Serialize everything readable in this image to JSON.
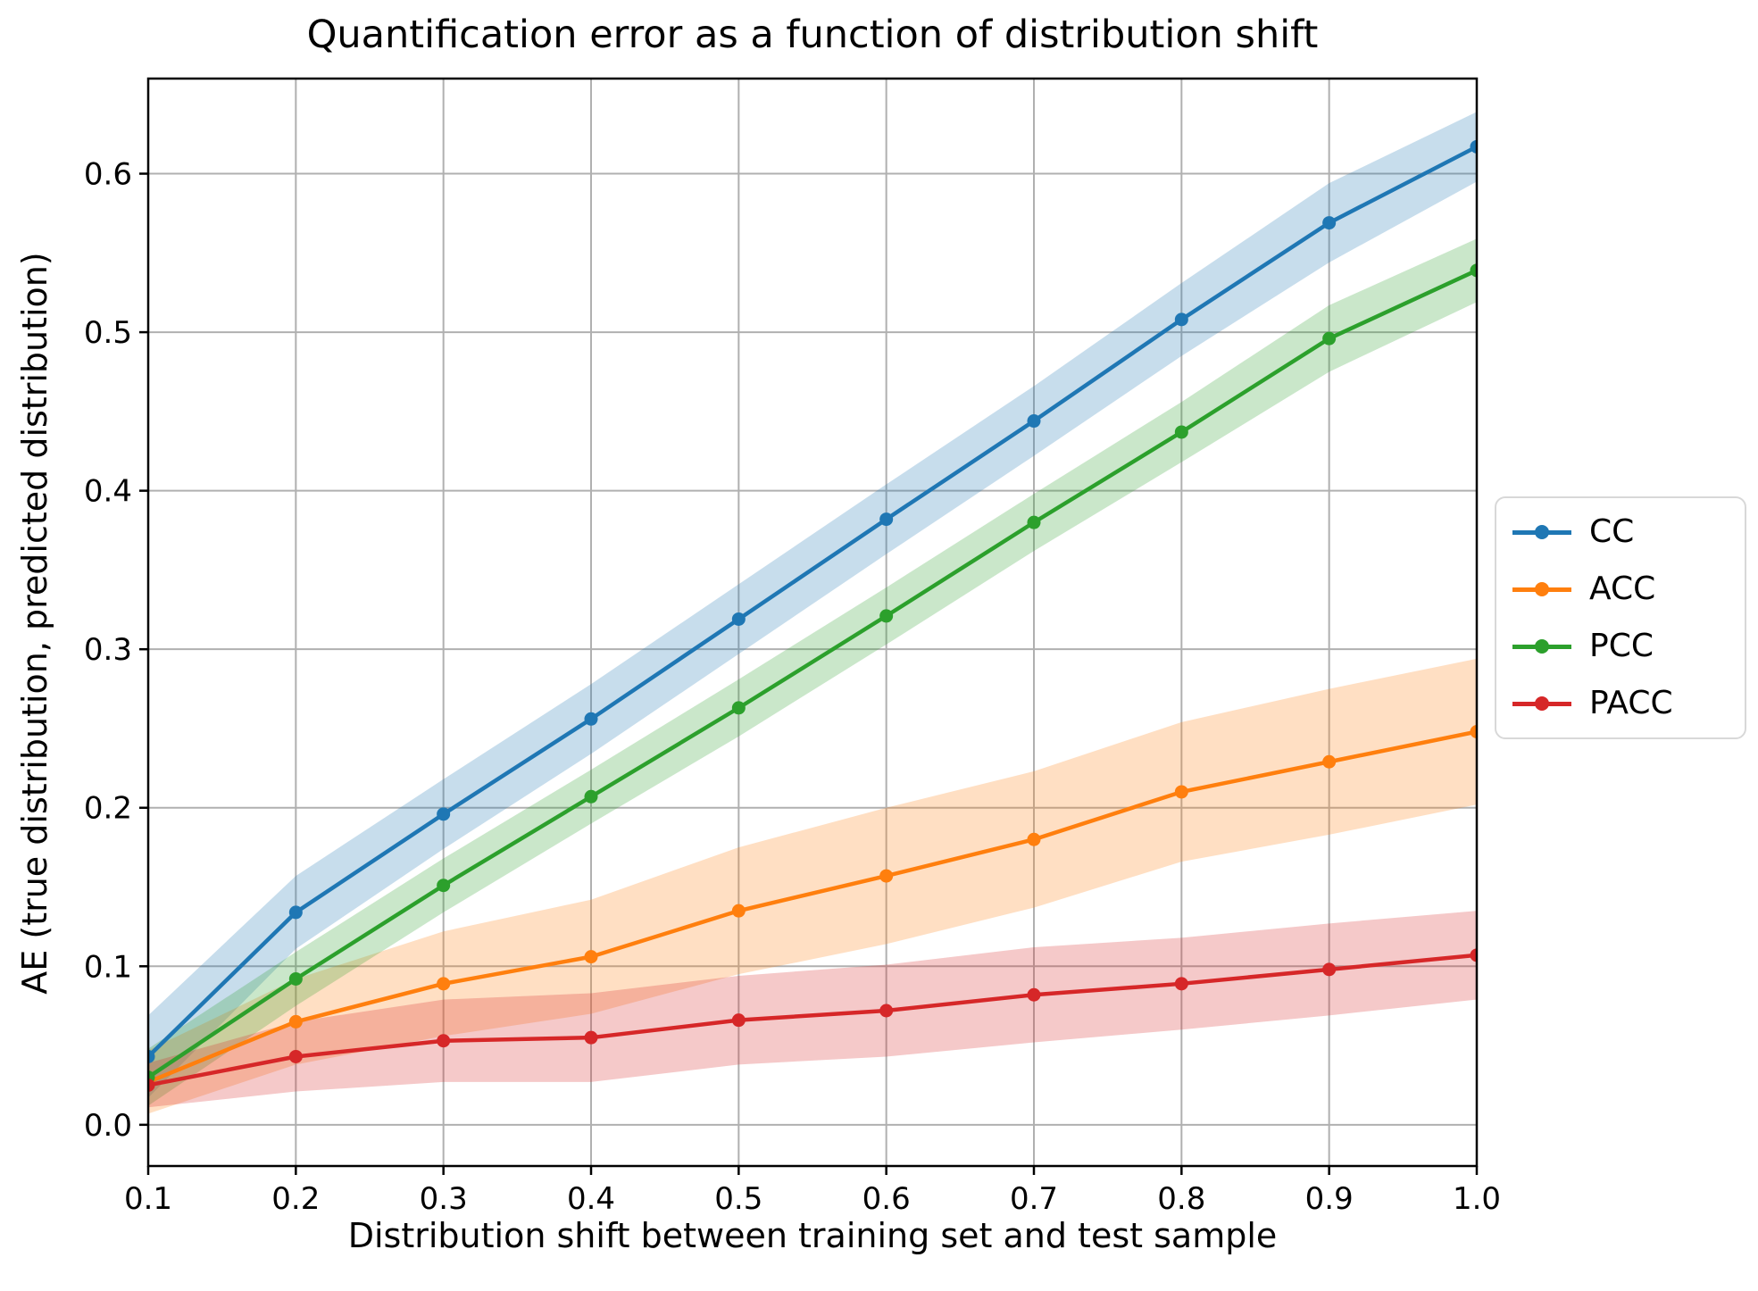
{
  "figure": {
    "title": "Quantification error as a function of distribution shift",
    "xlabel": "Distribution shift between training set and test sample",
    "ylabel": "AE (true distribution, predicted distribution)"
  },
  "chart_data": {
    "type": "line",
    "title": "Quantification error as a function of distribution shift",
    "xlabel": "Distribution shift between training set and test sample",
    "ylabel": "AE (true distribution, predicted distribution)",
    "grid": true,
    "grid_color": "#b0b0b0",
    "spine_color": "#000000",
    "legend_position": "center right outside",
    "band_opacity": 0.25,
    "xlim": [
      0.1,
      1.0
    ],
    "ylim": [
      -0.026,
      0.66
    ],
    "x": [
      0.1,
      0.2,
      0.3,
      0.4,
      0.5,
      0.6,
      0.7,
      0.8,
      0.9,
      1.0
    ],
    "x_tick_labels": [
      "0.1",
      "0.2",
      "0.3",
      "0.4",
      "0.5",
      "0.6",
      "0.7",
      "0.8",
      "0.9",
      "1.0"
    ],
    "y_ticks": [
      0.0,
      0.1,
      0.2,
      0.3,
      0.4,
      0.5,
      0.6
    ],
    "y_tick_labels": [
      "0.0",
      "0.1",
      "0.2",
      "0.3",
      "0.4",
      "0.5",
      "0.6"
    ],
    "series": [
      {
        "name": "CC",
        "color": "#1f77b4",
        "values": [
          0.043,
          0.134,
          0.196,
          0.256,
          0.319,
          0.382,
          0.444,
          0.508,
          0.569,
          0.617
        ],
        "band_halfwidth": [
          0.026,
          0.023,
          0.022,
          0.022,
          0.022,
          0.022,
          0.022,
          0.023,
          0.025,
          0.022
        ]
      },
      {
        "name": "ACC",
        "color": "#ff7f0e",
        "values": [
          0.027,
          0.065,
          0.089,
          0.106,
          0.135,
          0.157,
          0.18,
          0.21,
          0.229,
          0.248
        ],
        "band_halfwidth": [
          0.02,
          0.027,
          0.033,
          0.036,
          0.04,
          0.043,
          0.043,
          0.044,
          0.046,
          0.046
        ]
      },
      {
        "name": "PCC",
        "color": "#2ca02c",
        "values": [
          0.03,
          0.092,
          0.151,
          0.207,
          0.263,
          0.321,
          0.38,
          0.437,
          0.496,
          0.539
        ],
        "band_halfwidth": [
          0.018,
          0.017,
          0.017,
          0.017,
          0.018,
          0.018,
          0.018,
          0.019,
          0.021,
          0.02
        ]
      },
      {
        "name": "PACC",
        "color": "#d62728",
        "values": [
          0.025,
          0.043,
          0.053,
          0.055,
          0.066,
          0.072,
          0.082,
          0.089,
          0.098,
          0.107
        ],
        "band_halfwidth": [
          0.014,
          0.022,
          0.026,
          0.028,
          0.028,
          0.029,
          0.03,
          0.029,
          0.029,
          0.028
        ]
      }
    ]
  }
}
